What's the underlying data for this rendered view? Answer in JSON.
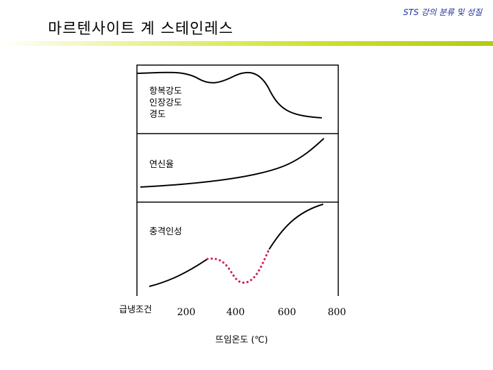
{
  "header": {
    "note": "STS 강의 분류 및 성질",
    "title": "마르텐사이트 계 스테인레스",
    "accent_color": "#c6d61e"
  },
  "panels": [
    {
      "labels": [
        "항복강도",
        "인장강도",
        "경도"
      ],
      "trend": "high then falls sharply above ~500 ℃"
    },
    {
      "labels": [
        "연신율"
      ],
      "trend": "rises gradually, steeply near 800 ℃"
    },
    {
      "labels": [
        "충격인성"
      ],
      "trend": "rises, dips (dotted, ~400–500 ℃), then rises steeply"
    }
  ],
  "x_axis": {
    "start_label": "급냉조건",
    "ticks": [
      "200",
      "400",
      "600",
      "800"
    ],
    "title": "뜨임온도 (℃)"
  },
  "colors": {
    "curve": "#000000",
    "dotted_region": "#cc2255"
  }
}
